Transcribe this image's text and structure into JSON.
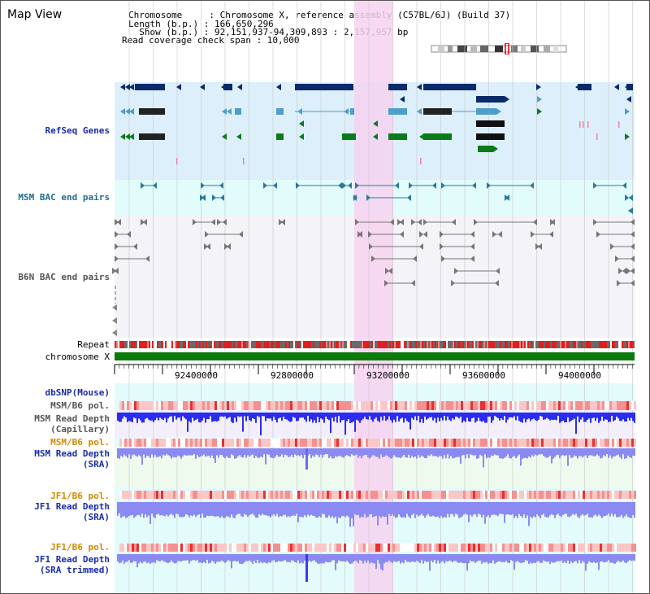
{
  "app": {
    "title": "Map View"
  },
  "header": {
    "chromosome": "Chromosome     : Chromosome X, reference assembly (C57BL/6J) (Build 37)",
    "length": "Length (b.p.) : 166,650,296",
    "show": "  Show (b.p.) : 92,151,937-94,309,893 : 2,157,957 bp",
    "coverage": "Read coverage check span : 10,000"
  },
  "tracks": {
    "refseq": "RefSeq Genes",
    "msm_bac": "MSM BAC end pairs",
    "b6n_bac": "B6N BAC end pairs",
    "repeat": "Repeat",
    "chromosome": "chromosome X",
    "dbsnp": "dbSNP(Mouse)",
    "msm_b6_pol_1": "MSM/B6 pol.",
    "msm_depth_cap": "MSM Read Depth\n(Capillary)",
    "msm_b6_pol_2": "MSM/B6 pol.",
    "msm_depth_sra": "MSM Read Depth\n(SRA)",
    "jf1_b6_pol_1": "JF1/B6 pol.",
    "jf1_depth_sra": "JF1 Read Depth\n(SRA)",
    "jf1_b6_pol_2": "JF1/B6 pol.",
    "jf1_depth_trim": "JF1 Read Depth\n(SRA trimmed)"
  },
  "axis": {
    "ticks": [
      "92400000",
      "92800000",
      "93200000",
      "93600000",
      "94000000"
    ]
  },
  "colors": {
    "highlight": "#f6d2f0",
    "refseq_bg": "#ddeffa",
    "msm_bg": "#e2fbfb",
    "b6n_bg": "#f3f3f8",
    "gene_navy": "#0b2a6a",
    "gene_blue": "#4f9ec9",
    "gene_green": "#0b7a1a",
    "chrom_green": "#0a7a0a",
    "depth_blue": "#2a2cf0",
    "depth_light": "#8a8af2",
    "pol_red": "#f07a7a"
  }
}
